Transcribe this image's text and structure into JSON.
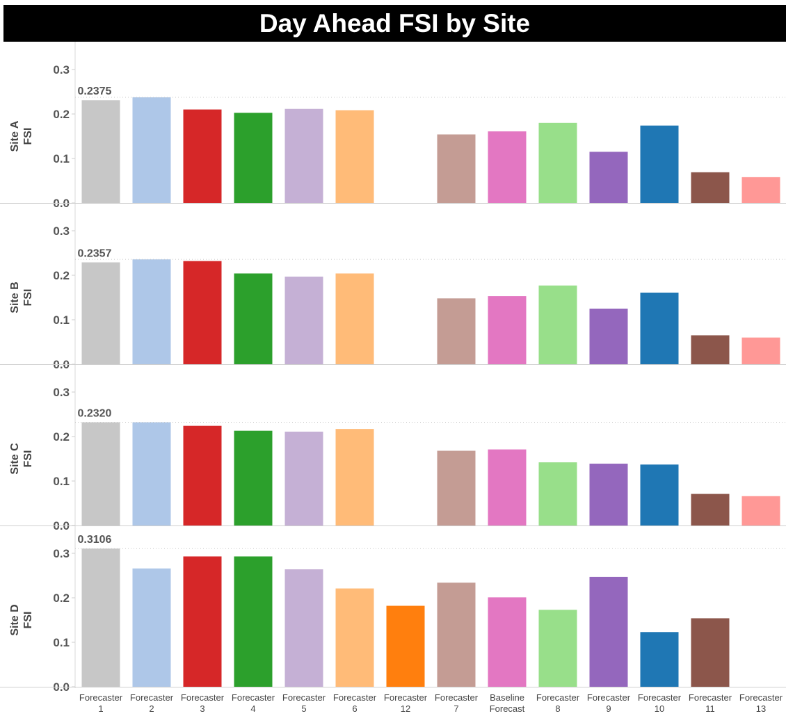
{
  "title": "Day Ahead FSI by Site",
  "chart_data": {
    "type": "bar",
    "title": "Day Ahead FSI by Site",
    "categories": [
      [
        "Forecaster",
        "1"
      ],
      [
        "Forecaster",
        "2"
      ],
      [
        "Forecaster",
        "3"
      ],
      [
        "Forecaster",
        "4"
      ],
      [
        "Forecaster",
        "5"
      ],
      [
        "Forecaster",
        "6"
      ],
      [
        "Forecaster",
        "12"
      ],
      [
        "Forecaster",
        "7"
      ],
      [
        "Baseline",
        "Forecast"
      ],
      [
        "Forecaster",
        "8"
      ],
      [
        "Forecaster",
        "9"
      ],
      [
        "Forecaster",
        "10"
      ],
      [
        "Forecaster",
        "11"
      ],
      [
        "Forecaster",
        "13"
      ]
    ],
    "colors": [
      "#c7c7c7",
      "#aec7e8",
      "#d62728",
      "#2ca02c",
      "#c5b0d5",
      "#ffbb78",
      "#ff7f0e",
      "#c49c94",
      "#e377c2",
      "#98df8a",
      "#9467bd",
      "#1f77b4",
      "#8c564b",
      "#ff9896"
    ],
    "yticks": [
      "0.0",
      "0.1",
      "0.2",
      "0.3"
    ],
    "ylim": [
      0,
      0.32
    ],
    "panels": [
      {
        "name": "Site A",
        "ylabel": [
          "Site A",
          "FSI"
        ],
        "values": [
          0.2309,
          0.2375,
          0.2101,
          0.2027,
          0.2114,
          0.2085,
          null,
          0.154,
          0.161,
          0.18,
          0.115,
          0.174,
          0.069,
          0.058
        ],
        "annotation": "0.2375"
      },
      {
        "name": "Site B",
        "ylabel": [
          "Site B",
          "FSI"
        ],
        "values": [
          0.229,
          0.2357,
          0.232,
          0.204,
          0.197,
          0.204,
          null,
          0.148,
          0.153,
          0.177,
          0.125,
          0.161,
          0.065,
          0.06
        ],
        "annotation": "0.2357"
      },
      {
        "name": "Site C",
        "ylabel": [
          "Site C",
          "FSI"
        ],
        "values": [
          0.232,
          0.232,
          0.224,
          0.213,
          0.211,
          0.217,
          null,
          0.168,
          0.171,
          0.142,
          0.139,
          0.137,
          0.071,
          0.066
        ],
        "annotation": "0.2320"
      },
      {
        "name": "Site D",
        "ylabel": [
          "Site D",
          "FSI"
        ],
        "values": [
          0.3106,
          0.266,
          0.293,
          0.293,
          0.264,
          0.221,
          0.182,
          0.234,
          0.201,
          0.173,
          0.247,
          0.123,
          0.154,
          null
        ],
        "annotation": "0.3106"
      }
    ],
    "grid": "dotted reference line at top of annotated bar",
    "legend": "none"
  }
}
